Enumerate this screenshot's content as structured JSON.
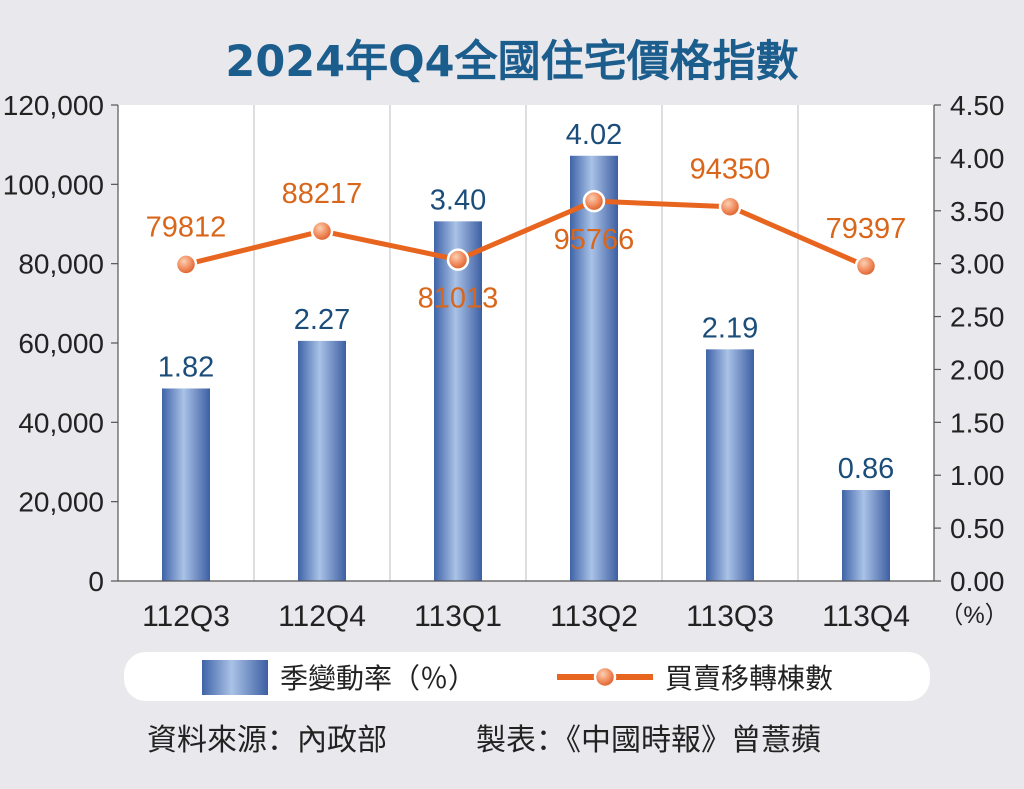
{
  "chart_data": {
    "type": "bar+line",
    "title": "2024年Q4全國住宅價格指數",
    "categories": [
      "112Q3",
      "112Q4",
      "113Q1",
      "113Q2",
      "113Q3",
      "113Q4"
    ],
    "series": [
      {
        "name": "季變動率（％）",
        "type": "bar",
        "axis": "right",
        "values": [
          1.82,
          2.27,
          3.4,
          4.02,
          2.19,
          0.86
        ],
        "labels": [
          "1.82",
          "2.27",
          "3.40",
          "4.02",
          "2.19",
          "0.86"
        ],
        "color": "#6f8fc6"
      },
      {
        "name": "買賣移轉棟數",
        "type": "line",
        "axis": "left",
        "values": [
          79812,
          88217,
          81013,
          95766,
          94350,
          79397
        ],
        "labels": [
          "79812",
          "88217",
          "81013",
          "95766",
          "94350",
          "79397"
        ],
        "color": "#e8651f"
      }
    ],
    "y_left": {
      "range": [
        0,
        120000
      ],
      "ticks": [
        "0",
        "20,000",
        "40,000",
        "60,000",
        "80,000",
        "100,000",
        "120,000"
      ]
    },
    "y_right": {
      "range": [
        0,
        4.5
      ],
      "unit": "（%）",
      "ticks": [
        "0.00",
        "0.50",
        "1.00",
        "1.50",
        "2.00",
        "2.50",
        "3.00",
        "3.50",
        "4.00",
        "4.50"
      ]
    },
    "grid": "vertical",
    "legend": "bottom"
  },
  "footer": {
    "source": "資料來源：內政部",
    "maker": "製表：《中國時報》曾薏蘋"
  },
  "colors": {
    "background": "#e9e8ec",
    "plot_bg": "#ffffff",
    "title": "#1b5d8c",
    "bar_label": "#1b4d7a",
    "line_label": "#d9661a"
  }
}
